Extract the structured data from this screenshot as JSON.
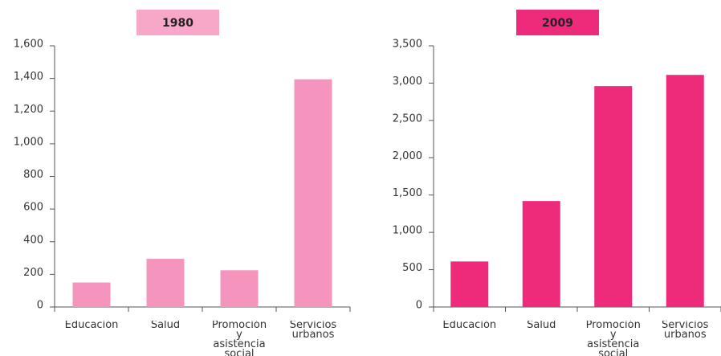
{
  "chart_data": [
    {
      "type": "bar",
      "title": "1980",
      "title_color": "#f7a8c8",
      "color": "#f595be",
      "categories": [
        "Educación",
        "Salud",
        "Promoción y asistencia social",
        "Servicios urbanos"
      ],
      "values": [
        150,
        295,
        225,
        1395
      ],
      "ylim": [
        0,
        1600
      ],
      "yticks": [
        0,
        200,
        400,
        600,
        800,
        {
          "value": 1000,
          "label": "1,000"
        },
        {
          "value": 1200,
          "label": "1,200"
        },
        {
          "value": 1400,
          "label": "1,400"
        },
        {
          "value": 1600,
          "label": "1,600"
        }
      ]
    },
    {
      "type": "bar",
      "title": "2009",
      "title_color": "#ee2a7b",
      "color": "#ee2a7b",
      "categories": [
        "Educación",
        "Salud",
        "Promoción y asistencia social",
        "Servicios urbanos"
      ],
      "values": [
        610,
        1420,
        2960,
        3110
      ],
      "ylim": [
        0,
        3500
      ],
      "yticks": [
        0,
        500,
        {
          "value": 1000,
          "label": "1,000"
        },
        {
          "value": 1500,
          "label": "1,500"
        },
        {
          "value": 2000,
          "label": "2,000"
        },
        {
          "value": 2500,
          "label": "2,500"
        },
        {
          "value": 3000,
          "label": "3,000"
        },
        {
          "value": 3500,
          "label": "3,500"
        }
      ]
    }
  ]
}
